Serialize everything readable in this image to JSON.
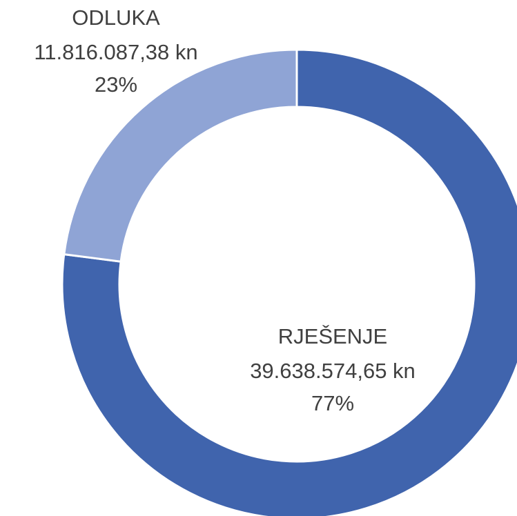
{
  "chart_data": {
    "type": "donut",
    "categories": [
      "RJEŠENJE",
      "ODLUKA"
    ],
    "values": [
      39638574.65,
      11816087.38
    ],
    "value_labels": [
      "39.638.574,65 kn",
      "11.816.087,38 kn"
    ],
    "percentages": [
      77,
      23
    ],
    "percentage_labels": [
      "77%",
      "23%"
    ],
    "colors": [
      "#4064ad",
      "#8fa4d5"
    ]
  }
}
